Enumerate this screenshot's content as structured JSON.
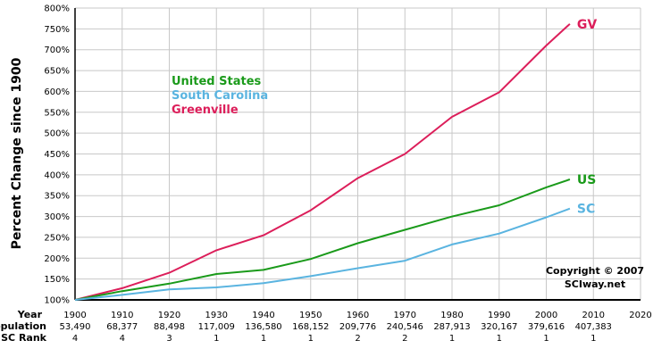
{
  "chart_data": {
    "type": "line",
    "ylabel": "Percent Change since 1900",
    "ylim": [
      100,
      800
    ],
    "yticks": [
      "100%",
      "150%",
      "200%",
      "250%",
      "300%",
      "350%",
      "400%",
      "450%",
      "500%",
      "550%",
      "600%",
      "650%",
      "700%",
      "750%",
      "800%"
    ],
    "xlim": [
      1900,
      2020
    ],
    "xticks": [
      "1900",
      "1910",
      "1920",
      "1930",
      "1940",
      "1950",
      "1960",
      "1970",
      "1980",
      "1990",
      "2000",
      "2010",
      "2020"
    ],
    "grid": true,
    "legend": {
      "placement": "top-left",
      "entries": [
        {
          "label": "United States",
          "color": "#1a9a1a"
        },
        {
          "label": "South Carolina",
          "color": "#5ab4e0"
        },
        {
          "label": "Greenville",
          "color": "#dc1e5a"
        }
      ]
    },
    "x": [
      1900,
      1910,
      1920,
      1930,
      1940,
      1950,
      1960,
      1970,
      1980,
      1990,
      2000,
      2005
    ],
    "series": [
      {
        "name": "GV",
        "color": "#dc1e5a",
        "values": [
          100,
          128,
          165,
          219,
          255,
          315,
          392,
          450,
          539,
          598,
          710,
          762
        ]
      },
      {
        "name": "US",
        "color": "#1a9a1a",
        "values": [
          100,
          121,
          139,
          162,
          172,
          198,
          236,
          268,
          300,
          327,
          370,
          389
        ]
      },
      {
        "name": "SC",
        "color": "#5ab4e0",
        "values": [
          100,
          112,
          125,
          130,
          140,
          157,
          176,
          194,
          233,
          259,
          298,
          319
        ]
      }
    ],
    "table": {
      "row_labels": [
        "Year",
        "Population",
        "SC Rank"
      ],
      "population": [
        "53,490",
        "68,377",
        "88,498",
        "117,009",
        "136,580",
        "168,152",
        "209,776",
        "240,546",
        "287,913",
        "320,167",
        "379,616",
        "407,383"
      ],
      "sc_rank": [
        "4",
        "4",
        "3",
        "1",
        "1",
        "1",
        "2",
        "2",
        "1",
        "1",
        "1",
        "1"
      ]
    },
    "copyright": [
      "Copyright © 2007",
      "SCIway.net"
    ]
  }
}
